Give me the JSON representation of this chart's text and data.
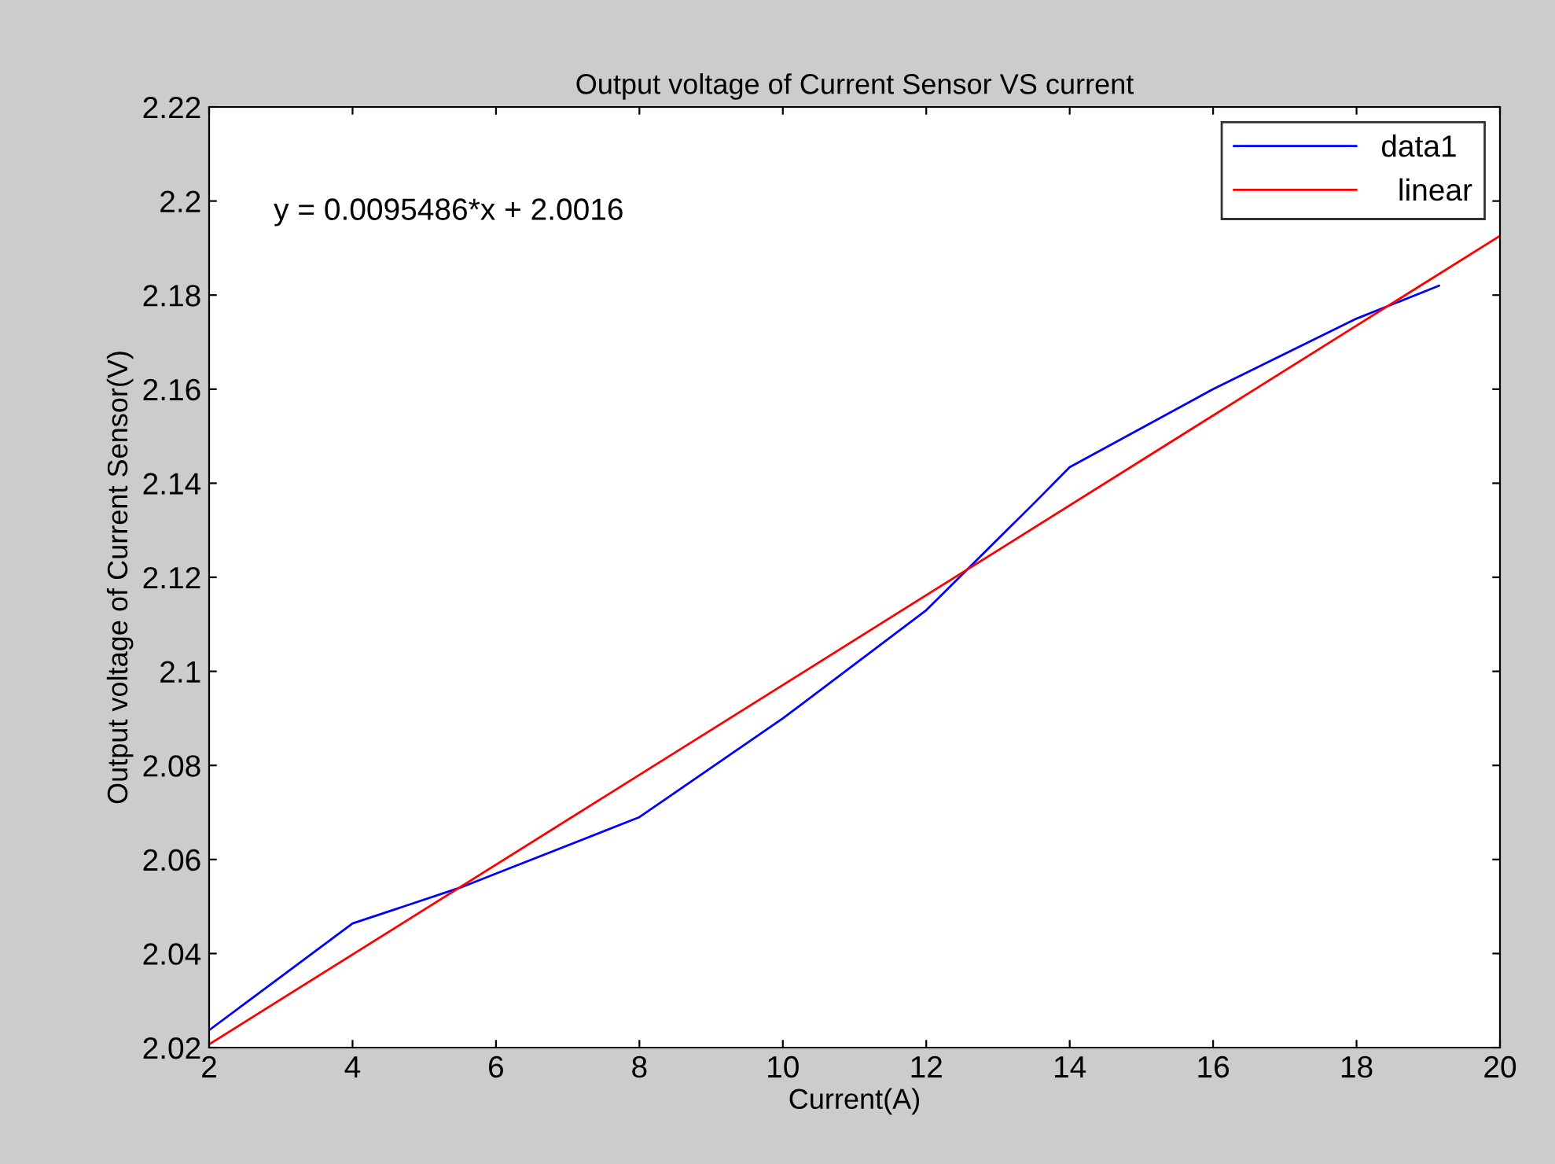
{
  "chart_data": {
    "type": "line",
    "title": "Output voltage of Current Sensor VS current",
    "xlabel": "Current(A)",
    "ylabel": "Output voltage of Current Sensor(V)",
    "xlim": [
      2,
      20
    ],
    "xticks": [
      2,
      4,
      6,
      8,
      10,
      12,
      14,
      16,
      18,
      20
    ],
    "ylim": [
      2.02,
      2.22
    ],
    "yticks": [
      2.02,
      2.04,
      2.06,
      2.08,
      2.1,
      2.12,
      2.14,
      2.16,
      2.18,
      2.2,
      2.22
    ],
    "series": [
      {
        "name": "data1",
        "color": "#0000ff",
        "x": [
          2,
          4,
          5.5,
          6,
          8,
          10,
          12,
          13.5,
          14,
          16,
          18,
          19.15
        ],
        "values": [
          2.0237,
          2.0464,
          2.054,
          2.057,
          2.069,
          2.09,
          2.113,
          2.1357,
          2.1434,
          2.16,
          2.175,
          2.182
        ]
      },
      {
        "name": "  linear",
        "color": "#ff0000",
        "x": [
          2,
          20
        ],
        "values": [
          2.0207,
          2.1926
        ]
      }
    ],
    "annotations": [
      "y = 0.0095486*x + 2.0016"
    ],
    "legend": "top right",
    "grid": false
  }
}
